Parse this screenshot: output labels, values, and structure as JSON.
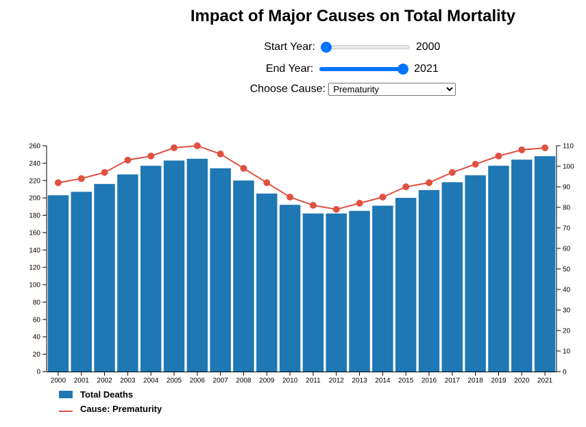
{
  "header": {
    "title": "Impact of Major Causes on Total Mortality"
  },
  "controls": {
    "start_label": "Start Year:",
    "start_value": "2000",
    "start_fraction": 0.0,
    "end_label": "End Year:",
    "end_value": "2021",
    "end_fraction": 1.0,
    "cause_label": "Choose Cause:",
    "cause_selected": "Prematurity"
  },
  "legend": {
    "bars_label": "Total Deaths",
    "line_label": "Cause: Prematurity"
  },
  "colors": {
    "bar": "#1f77b4",
    "line": "#e05140",
    "slider": "#0075ff"
  },
  "chart_data": {
    "type": "bar",
    "categories": [
      "2000",
      "2001",
      "2002",
      "2003",
      "2004",
      "2005",
      "2006",
      "2007",
      "2008",
      "2009",
      "2010",
      "2011",
      "2012",
      "2013",
      "2014",
      "2015",
      "2016",
      "2017",
      "2018",
      "2019",
      "2020",
      "2021"
    ],
    "series": [
      {
        "name": "Total Deaths",
        "type": "bar",
        "axis": "left",
        "values": [
          203,
          207,
          216,
          227,
          237,
          243,
          245,
          234,
          220,
          205,
          192,
          182,
          182,
          185,
          191,
          200,
          209,
          218,
          226,
          237,
          244,
          248
        ]
      },
      {
        "name": "Cause: Prematurity",
        "type": "line",
        "axis": "right",
        "values": [
          92,
          94,
          97,
          103,
          105,
          109,
          110,
          106,
          99,
          92,
          85,
          81,
          79,
          82,
          85,
          90,
          92,
          97,
          101,
          105,
          108,
          109
        ]
      }
    ],
    "ylim_left": [
      0,
      260
    ],
    "yticks_left": [
      0,
      20,
      40,
      60,
      80,
      100,
      120,
      140,
      160,
      180,
      200,
      220,
      240,
      260
    ],
    "ylim_right": [
      0,
      110
    ],
    "yticks_right": [
      0,
      10,
      20,
      30,
      40,
      50,
      60,
      70,
      80,
      90,
      100,
      110
    ],
    "legend_position": "bottom-left",
    "grid": false
  }
}
